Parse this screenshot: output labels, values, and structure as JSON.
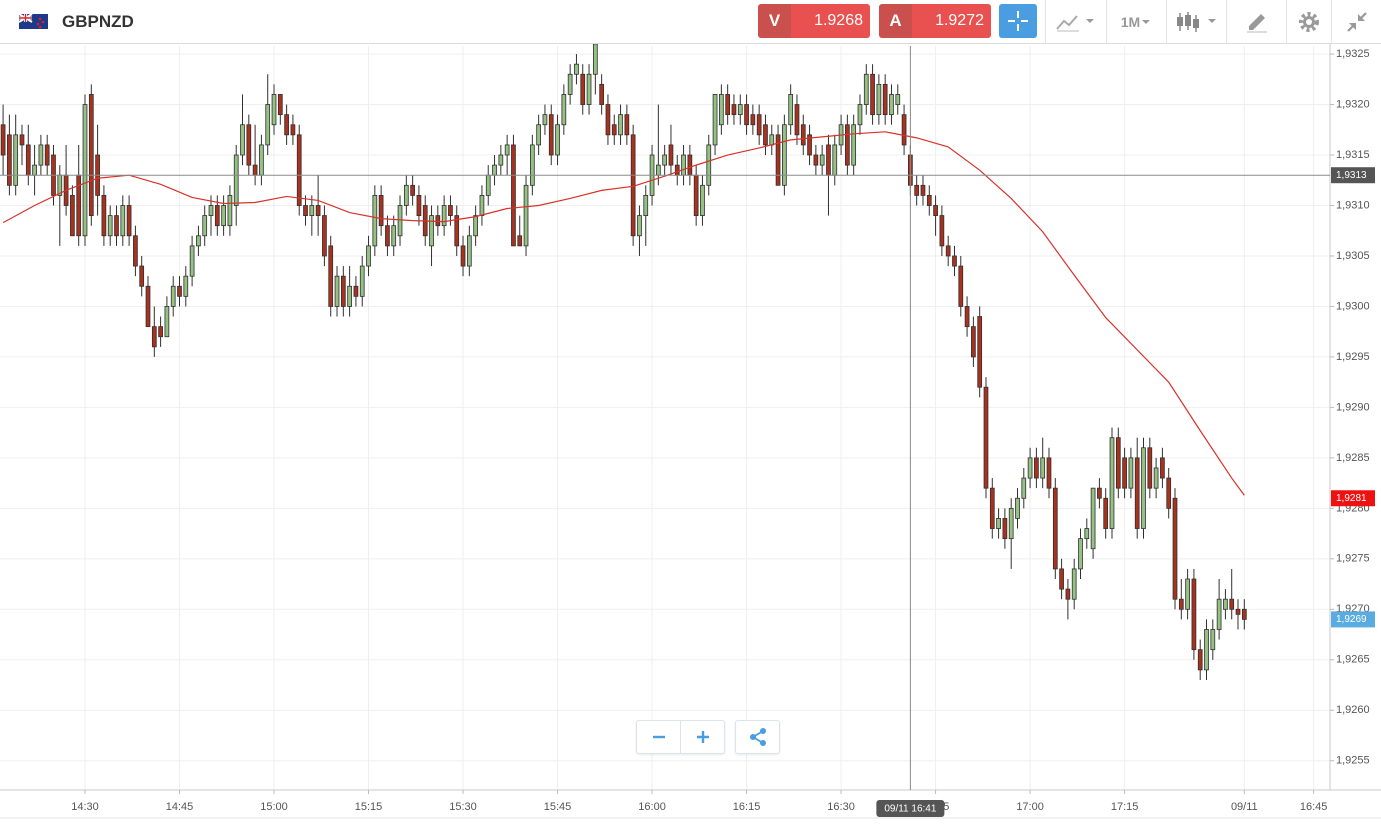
{
  "header": {
    "symbol": "GBPNZD",
    "sell_label": "V",
    "sell_price": "1.9268",
    "buy_label": "A",
    "buy_price": "1.9272",
    "timeframe": "1M"
  },
  "chart_data": {
    "type": "candlestick",
    "up_color": "#95c284",
    "down_color": "#a8321f",
    "outline_color": "#2f2f2f",
    "ohlc": [
      [
        1.9318,
        1.932,
        1.9313,
        1.9315
      ],
      [
        1.9317,
        1.9319,
        1.9311,
        1.9312
      ],
      [
        1.9312,
        1.9319,
        1.9311,
        1.9317
      ],
      [
        1.9317,
        1.9318,
        1.9314,
        1.9316
      ],
      [
        1.9316,
        1.9318,
        1.9312,
        1.9313
      ],
      [
        1.9313,
        1.9316,
        1.9311,
        1.9314
      ],
      [
        1.9314,
        1.9317,
        1.9313,
        1.9316
      ],
      [
        1.9316,
        1.9317,
        1.9313,
        1.9314
      ],
      [
        1.9315,
        1.9316,
        1.931,
        1.9311
      ],
      [
        1.9311,
        1.9314,
        1.9306,
        1.9313
      ],
      [
        1.9313,
        1.9316,
        1.9309,
        1.931
      ],
      [
        1.9311,
        1.9312,
        1.9307,
        1.9307
      ],
      [
        1.9313,
        1.9316,
        1.9306,
        1.9307
      ],
      [
        1.9307,
        1.9321,
        1.9306,
        1.932
      ],
      [
        1.9321,
        1.9322,
        1.9308,
        1.9309
      ],
      [
        1.9315,
        1.9318,
        1.9309,
        1.9311
      ],
      [
        1.9311,
        1.9312,
        1.9306,
        1.9307
      ],
      [
        1.9307,
        1.931,
        1.9306,
        1.9309
      ],
      [
        1.9309,
        1.931,
        1.9306,
        1.9307
      ],
      [
        1.9307,
        1.9311,
        1.9306,
        1.931
      ],
      [
        1.931,
        1.9311,
        1.9306,
        1.9307
      ],
      [
        1.9307,
        1.9308,
        1.9303,
        1.9304
      ],
      [
        1.9304,
        1.9305,
        1.9301,
        1.9302
      ],
      [
        1.9302,
        1.9303,
        1.9298,
        1.9298
      ],
      [
        1.9298,
        1.93,
        1.9295,
        1.9296
      ],
      [
        1.9298,
        1.9299,
        1.9296,
        1.9297
      ],
      [
        1.9297,
        1.9301,
        1.9297,
        1.93
      ],
      [
        1.93,
        1.9303,
        1.9299,
        1.9302
      ],
      [
        1.9302,
        1.9303,
        1.93,
        1.9301
      ],
      [
        1.9301,
        1.9304,
        1.93,
        1.9303
      ],
      [
        1.9303,
        1.9307,
        1.9302,
        1.9306
      ],
      [
        1.9306,
        1.9308,
        1.9305,
        1.9307
      ],
      [
        1.9307,
        1.931,
        1.9306,
        1.9309
      ],
      [
        1.9309,
        1.9311,
        1.9307,
        1.931
      ],
      [
        1.931,
        1.9311,
        1.9307,
        1.9308
      ],
      [
        1.9308,
        1.9311,
        1.9307,
        1.931
      ],
      [
        1.9308,
        1.9312,
        1.9307,
        1.9311
      ],
      [
        1.931,
        1.9316,
        1.9308,
        1.9315
      ],
      [
        1.9315,
        1.9321,
        1.9314,
        1.9318
      ],
      [
        1.9318,
        1.9319,
        1.9313,
        1.9314
      ],
      [
        1.9314,
        1.9318,
        1.9312,
        1.9313
      ],
      [
        1.9313,
        1.9317,
        1.9312,
        1.9316
      ],
      [
        1.9316,
        1.9323,
        1.9315,
        1.932
      ],
      [
        1.9318,
        1.9322,
        1.9317,
        1.9321
      ],
      [
        1.9321,
        1.9321,
        1.9318,
        1.9319
      ],
      [
        1.9319,
        1.932,
        1.9316,
        1.9317
      ],
      [
        1.9318,
        1.9319,
        1.9316,
        1.9317
      ],
      [
        1.9317,
        1.9318,
        1.9309,
        1.931
      ],
      [
        1.931,
        1.9311,
        1.9308,
        1.9309
      ],
      [
        1.9309,
        1.9311,
        1.9307,
        1.931
      ],
      [
        1.931,
        1.9313,
        1.9307,
        1.9309
      ],
      [
        1.9309,
        1.931,
        1.9304,
        1.9305
      ],
      [
        1.9306,
        1.9307,
        1.9299,
        1.93
      ],
      [
        1.93,
        1.9304,
        1.9299,
        1.9303
      ],
      [
        1.9303,
        1.9304,
        1.9299,
        1.93
      ],
      [
        1.93,
        1.9304,
        1.9299,
        1.9302
      ],
      [
        1.9302,
        1.9303,
        1.93,
        1.9301
      ],
      [
        1.9301,
        1.9305,
        1.93,
        1.9304
      ],
      [
        1.9304,
        1.9307,
        1.9303,
        1.9306
      ],
      [
        1.9306,
        1.9312,
        1.9305,
        1.9311
      ],
      [
        1.9311,
        1.9312,
        1.9307,
        1.9308
      ],
      [
        1.9308,
        1.9309,
        1.9305,
        1.9306
      ],
      [
        1.9306,
        1.9309,
        1.9305,
        1.9308
      ],
      [
        1.9307,
        1.9311,
        1.9306,
        1.931
      ],
      [
        1.931,
        1.9313,
        1.9309,
        1.9312
      ],
      [
        1.9312,
        1.9313,
        1.931,
        1.9311
      ],
      [
        1.9311,
        1.9312,
        1.9308,
        1.9309
      ],
      [
        1.931,
        1.9311,
        1.9306,
        1.9307
      ],
      [
        1.9306,
        1.931,
        1.9304,
        1.9309
      ],
      [
        1.9309,
        1.931,
        1.9307,
        1.9308
      ],
      [
        1.9308,
        1.9311,
        1.9307,
        1.931
      ],
      [
        1.931,
        1.9311,
        1.9308,
        1.9309
      ],
      [
        1.9309,
        1.931,
        1.9305,
        1.9306
      ],
      [
        1.9306,
        1.9307,
        1.9303,
        1.9304
      ],
      [
        1.9304,
        1.9308,
        1.9303,
        1.9307
      ],
      [
        1.9307,
        1.931,
        1.9306,
        1.9309
      ],
      [
        1.9309,
        1.9312,
        1.9308,
        1.9311
      ],
      [
        1.9311,
        1.9314,
        1.931,
        1.9313
      ],
      [
        1.9313,
        1.9315,
        1.9312,
        1.9314
      ],
      [
        1.9314,
        1.9316,
        1.9313,
        1.9315
      ],
      [
        1.9315,
        1.9317,
        1.9313,
        1.9316
      ],
      [
        1.9316,
        1.9317,
        1.9306,
        1.9306
      ],
      [
        1.9307,
        1.9309,
        1.9306,
        1.9306
      ],
      [
        1.9306,
        1.9313,
        1.9305,
        1.9312
      ],
      [
        1.9312,
        1.9317,
        1.9311,
        1.9316
      ],
      [
        1.9316,
        1.9319,
        1.9315,
        1.9318
      ],
      [
        1.9318,
        1.932,
        1.9317,
        1.9319
      ],
      [
        1.9319,
        1.932,
        1.9314,
        1.9315
      ],
      [
        1.9315,
        1.9319,
        1.9314,
        1.9318
      ],
      [
        1.9318,
        1.9322,
        1.9317,
        1.9321
      ],
      [
        1.9321,
        1.9324,
        1.932,
        1.9323
      ],
      [
        1.9323,
        1.9325,
        1.9322,
        1.9324
      ],
      [
        1.9323,
        1.9324,
        1.9319,
        1.932
      ],
      [
        1.932,
        1.9324,
        1.9319,
        1.9323
      ],
      [
        1.9323,
        1.9327,
        1.9321,
        1.9326
      ],
      [
        1.9322,
        1.9323,
        1.9319,
        1.932
      ],
      [
        1.932,
        1.9321,
        1.9316,
        1.9317
      ],
      [
        1.9318,
        1.9319,
        1.9316,
        1.9317
      ],
      [
        1.9317,
        1.932,
        1.9316,
        1.9319
      ],
      [
        1.9319,
        1.932,
        1.9316,
        1.9317
      ],
      [
        1.9317,
        1.9318,
        1.9306,
        1.9307
      ],
      [
        1.9307,
        1.931,
        1.9305,
        1.9309
      ],
      [
        1.9309,
        1.9312,
        1.9306,
        1.9311
      ],
      [
        1.9311,
        1.9316,
        1.931,
        1.9315
      ],
      [
        1.9313,
        1.932,
        1.9312,
        1.9314
      ],
      [
        1.9314,
        1.9316,
        1.9313,
        1.9315
      ],
      [
        1.9316,
        1.9318,
        1.9313,
        1.9314
      ],
      [
        1.9314,
        1.9315,
        1.9312,
        1.9313
      ],
      [
        1.9313,
        1.9316,
        1.9312,
        1.9315
      ],
      [
        1.9315,
        1.9316,
        1.9312,
        1.9313
      ],
      [
        1.9313,
        1.9314,
        1.9308,
        1.9309
      ],
      [
        1.9309,
        1.9313,
        1.9308,
        1.9312
      ],
      [
        1.9312,
        1.9317,
        1.9311,
        1.9316
      ],
      [
        1.9316,
        1.9321,
        1.9315,
        1.9321
      ],
      [
        1.9318,
        1.9322,
        1.9317,
        1.9321
      ],
      [
        1.9321,
        1.9322,
        1.9318,
        1.9319
      ],
      [
        1.932,
        1.9321,
        1.9318,
        1.9319
      ],
      [
        1.9319,
        1.9321,
        1.9318,
        1.932
      ],
      [
        1.932,
        1.9321,
        1.9317,
        1.9318
      ],
      [
        1.9319,
        1.932,
        1.9317,
        1.9318
      ],
      [
        1.9319,
        1.932,
        1.9316,
        1.9317
      ],
      [
        1.9318,
        1.9319,
        1.9315,
        1.9316
      ],
      [
        1.9316,
        1.9318,
        1.9315,
        1.9317
      ],
      [
        1.9317,
        1.9318,
        1.9312,
        1.9312
      ],
      [
        1.9312,
        1.9319,
        1.9311,
        1.9318
      ],
      [
        1.9318,
        1.9322,
        1.9317,
        1.9321
      ],
      [
        1.932,
        1.9321,
        1.9316,
        1.9317
      ],
      [
        1.9318,
        1.9319,
        1.9315,
        1.9316
      ],
      [
        1.9317,
        1.9318,
        1.9314,
        1.9315
      ],
      [
        1.9315,
        1.9316,
        1.9313,
        1.9314
      ],
      [
        1.9314,
        1.9316,
        1.9313,
        1.9315
      ],
      [
        1.9316,
        1.9317,
        1.9309,
        1.9313
      ],
      [
        1.9313,
        1.9317,
        1.9312,
        1.9316
      ],
      [
        1.9316,
        1.9319,
        1.9315,
        1.9318
      ],
      [
        1.9318,
        1.9319,
        1.9313,
        1.9314
      ],
      [
        1.9314,
        1.9319,
        1.9313,
        1.9318
      ],
      [
        1.9318,
        1.9321,
        1.9317,
        1.932
      ],
      [
        1.932,
        1.9324,
        1.9319,
        1.9323
      ],
      [
        1.9323,
        1.9324,
        1.9318,
        1.9319
      ],
      [
        1.9319,
        1.9323,
        1.9318,
        1.9322
      ],
      [
        1.9322,
        1.9323,
        1.9318,
        1.9319
      ],
      [
        1.9319,
        1.9322,
        1.9318,
        1.9321
      ],
      [
        1.932,
        1.9322,
        1.9319,
        1.9321
      ],
      [
        1.9319,
        1.932,
        1.9315,
        1.9316
      ],
      [
        1.9315,
        1.9316,
        1.9311,
        1.9312
      ],
      [
        1.9312,
        1.9313,
        1.931,
        1.9311
      ],
      [
        1.9312,
        1.9313,
        1.931,
        1.9311
      ],
      [
        1.9311,
        1.9312,
        1.9309,
        1.931
      ],
      [
        1.931,
        1.9311,
        1.9307,
        1.9309
      ],
      [
        1.9309,
        1.931,
        1.9305,
        1.9306
      ],
      [
        1.9306,
        1.9307,
        1.9304,
        1.9305
      ],
      [
        1.9305,
        1.9306,
        1.9303,
        1.9304
      ],
      [
        1.9304,
        1.9305,
        1.9299,
        1.93
      ],
      [
        1.93,
        1.9301,
        1.9297,
        1.9298
      ],
      [
        1.9298,
        1.9299,
        1.9294,
        1.9295
      ],
      [
        1.9299,
        1.93,
        1.9291,
        1.9292
      ],
      [
        1.9292,
        1.9293,
        1.9281,
        1.9282
      ],
      [
        1.9282,
        1.9283,
        1.9277,
        1.9278
      ],
      [
        1.9278,
        1.928,
        1.9277,
        1.9279
      ],
      [
        1.9279,
        1.928,
        1.9276,
        1.9277
      ],
      [
        1.9277,
        1.9281,
        1.9274,
        1.928
      ],
      [
        1.9279,
        1.9282,
        1.9278,
        1.9281
      ],
      [
        1.9281,
        1.9284,
        1.928,
        1.9283
      ],
      [
        1.9283,
        1.9286,
        1.9282,
        1.9285
      ],
      [
        1.9285,
        1.9286,
        1.9282,
        1.9283
      ],
      [
        1.9283,
        1.9287,
        1.9282,
        1.9285
      ],
      [
        1.9285,
        1.9286,
        1.9281,
        1.9282
      ],
      [
        1.9282,
        1.9283,
        1.9273,
        1.9274
      ],
      [
        1.9274,
        1.9275,
        1.9271,
        1.9272
      ],
      [
        1.9272,
        1.9273,
        1.9269,
        1.9271
      ],
      [
        1.9271,
        1.9275,
        1.927,
        1.9274
      ],
      [
        1.9274,
        1.9278,
        1.9273,
        1.9277
      ],
      [
        1.9277,
        1.9279,
        1.9276,
        1.9278
      ],
      [
        1.9276,
        1.9282,
        1.9275,
        1.9282
      ],
      [
        1.9282,
        1.9283,
        1.928,
        1.9281
      ],
      [
        1.9281,
        1.9282,
        1.9277,
        1.9278
      ],
      [
        1.9278,
        1.9288,
        1.9277,
        1.9287
      ],
      [
        1.9287,
        1.9288,
        1.9281,
        1.9282
      ],
      [
        1.9285,
        1.9286,
        1.9281,
        1.9282
      ],
      [
        1.9282,
        1.9286,
        1.9281,
        1.9285
      ],
      [
        1.9285,
        1.9287,
        1.9277,
        1.9278
      ],
      [
        1.9278,
        1.9287,
        1.9277,
        1.9286
      ],
      [
        1.9286,
        1.9287,
        1.9281,
        1.9282
      ],
      [
        1.9282,
        1.9285,
        1.9281,
        1.9284
      ],
      [
        1.9285,
        1.9286,
        1.9282,
        1.9283
      ],
      [
        1.9283,
        1.9284,
        1.9279,
        1.928
      ],
      [
        1.9281,
        1.9282,
        1.927,
        1.9271
      ],
      [
        1.9271,
        1.9273,
        1.9269,
        1.927
      ],
      [
        1.927,
        1.9274,
        1.9269,
        1.9273
      ],
      [
        1.9273,
        1.9274,
        1.9265,
        1.9266
      ],
      [
        1.9266,
        1.9267,
        1.9263,
        1.9264
      ],
      [
        1.9264,
        1.9269,
        1.9263,
        1.9268
      ],
      [
        1.9266,
        1.9269,
        1.9265,
        1.9268
      ],
      [
        1.9268,
        1.9273,
        1.9267,
        1.9271
      ],
      [
        1.927,
        1.9272,
        1.9269,
        1.9271
      ],
      [
        1.9271,
        1.9274,
        1.9269,
        1.927
      ],
      [
        1.927,
        1.9271,
        1.9268,
        1.92695
      ],
      [
        1.927,
        1.9271,
        1.9268,
        1.9269
      ]
    ],
    "ma": {
      "color": "#d8322a",
      "x": [
        0,
        5,
        10,
        15,
        20,
        25,
        30,
        35,
        40,
        45,
        50,
        55,
        60,
        65,
        70,
        75,
        80,
        85,
        90,
        95,
        100,
        105,
        110,
        115,
        120,
        125,
        130,
        135,
        140,
        145,
        150,
        155,
        160,
        165,
        170,
        175,
        180,
        185,
        190,
        195,
        197
      ],
      "values": [
        1.93083,
        1.931,
        1.93115,
        1.93127,
        1.9313,
        1.93121,
        1.93108,
        1.93102,
        1.93103,
        1.93109,
        1.93105,
        1.93093,
        1.93087,
        1.93085,
        1.93084,
        1.93089,
        1.93097,
        1.931,
        1.93107,
        1.93115,
        1.93119,
        1.93129,
        1.9314,
        1.9315,
        1.93157,
        1.93165,
        1.93168,
        1.93171,
        1.93173,
        1.93167,
        1.93158,
        1.93135,
        1.93107,
        1.93074,
        1.93031,
        1.92989,
        1.92957,
        1.92925,
        1.92877,
        1.9283,
        1.92813
      ]
    },
    "xlim": [
      -0.49,
      210.6
    ],
    "xticks": [
      {
        "value": 13,
        "label": "14:30"
      },
      {
        "value": 28,
        "label": "14:45"
      },
      {
        "value": 43,
        "label": "15:00"
      },
      {
        "value": 58,
        "label": "15:15"
      },
      {
        "value": 73,
        "label": "15:30"
      },
      {
        "value": 88,
        "label": "15:45"
      },
      {
        "value": 103,
        "label": "16:00"
      },
      {
        "value": 118,
        "label": "16:15"
      },
      {
        "value": 133,
        "label": "16:30"
      },
      {
        "value": 148,
        "label": "16:45"
      },
      {
        "value": 163,
        "label": "17:00"
      },
      {
        "value": 178,
        "label": "17:15"
      },
      {
        "value": 197,
        "label": "09/11"
      },
      {
        "value": 208,
        "label": "16:45"
      }
    ],
    "ylim": [
      1.92521,
      1.93258
    ],
    "yticks": [
      {
        "value": 1.9255,
        "label": "1,9255"
      },
      {
        "value": 1.926,
        "label": "1,9260"
      },
      {
        "value": 1.9265,
        "label": "1,9265"
      },
      {
        "value": 1.927,
        "label": "1,9270"
      },
      {
        "value": 1.9275,
        "label": "1,9275"
      },
      {
        "value": 1.928,
        "label": "1,9280"
      },
      {
        "value": 1.9285,
        "label": "1,9285"
      },
      {
        "value": 1.929,
        "label": "1,9290"
      },
      {
        "value": 1.9295,
        "label": "1,9295"
      },
      {
        "value": 1.93,
        "label": "1,9300"
      },
      {
        "value": 1.9305,
        "label": "1,9305"
      },
      {
        "value": 1.931,
        "label": "1,9310"
      },
      {
        "value": 1.9315,
        "label": "1,9315"
      },
      {
        "value": 1.932,
        "label": "1,9320"
      },
      {
        "value": 1.9325,
        "label": "1,9325"
      }
    ],
    "grid": true,
    "crosshair": {
      "x": {
        "value": 144,
        "label": "09/11 16:41"
      },
      "y": {
        "value": 1.9313,
        "label": "1,9313"
      }
    },
    "price_labels": [
      {
        "value": 1.9281,
        "label": "1,9281",
        "color": "#ee1111"
      },
      {
        "value": 1.9269,
        "label": "1,9269",
        "color": "#5aabdf"
      }
    ]
  }
}
